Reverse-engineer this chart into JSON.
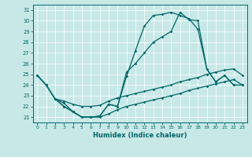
{
  "xlabel": "Humidex (Indice chaleur)",
  "xlim": [
    -0.5,
    23.5
  ],
  "ylim": [
    20.5,
    31.5
  ],
  "yticks": [
    21,
    22,
    23,
    24,
    25,
    26,
    27,
    28,
    29,
    30,
    31
  ],
  "xticks": [
    0,
    1,
    2,
    3,
    4,
    5,
    6,
    7,
    8,
    9,
    10,
    11,
    12,
    13,
    14,
    15,
    16,
    17,
    18,
    19,
    20,
    21,
    22,
    23
  ],
  "bg_color": "#c8e8e8",
  "grid_color": "#ffffff",
  "line_color": "#006666",
  "curve1_x": [
    0,
    1,
    2,
    3,
    4,
    5,
    6,
    7,
    8,
    9,
    10,
    11,
    12,
    13,
    14,
    15,
    16,
    17,
    18,
    19,
    20,
    21,
    22
  ],
  "curve1_y": [
    24.9,
    24.0,
    22.7,
    22.0,
    21.5,
    21.0,
    21.0,
    21.1,
    22.2,
    22.0,
    24.8,
    27.2,
    29.5,
    30.5,
    30.6,
    30.8,
    30.5,
    30.2,
    29.2,
    25.5,
    24.3,
    24.9,
    24.0
  ],
  "curve2_x": [
    0,
    1,
    2,
    3,
    4,
    5,
    6,
    7,
    8,
    9,
    10,
    11,
    12,
    13,
    14,
    15,
    16,
    17,
    18,
    19,
    20,
    21,
    22,
    23
  ],
  "curve2_y": [
    24.9,
    24.0,
    22.7,
    22.0,
    21.5,
    21.0,
    21.0,
    21.1,
    22.2,
    22.0,
    25.2,
    26.0,
    27.0,
    28.0,
    28.5,
    29.0,
    30.8,
    30.1,
    30.0,
    25.5,
    24.3,
    24.9,
    24.0,
    24.0
  ],
  "curve3_x": [
    0,
    1,
    2,
    3,
    4,
    5,
    6,
    7,
    8,
    9,
    10,
    11,
    12,
    13,
    14,
    15,
    16,
    17,
    18,
    19,
    20,
    21,
    22,
    23
  ],
  "curve3_y": [
    24.9,
    24.0,
    22.7,
    22.5,
    22.2,
    22.0,
    22.0,
    22.1,
    22.5,
    22.8,
    23.0,
    23.2,
    23.4,
    23.6,
    23.8,
    24.0,
    24.3,
    24.5,
    24.7,
    25.0,
    25.2,
    25.4,
    25.5,
    24.9
  ],
  "curve4_x": [
    2,
    3,
    4,
    5,
    6,
    7,
    8,
    9,
    10,
    11,
    12,
    13,
    14,
    15,
    16,
    17,
    18,
    19,
    20,
    21,
    22,
    23
  ],
  "curve4_y": [
    22.7,
    22.3,
    21.5,
    21.0,
    21.0,
    21.0,
    21.3,
    21.7,
    22.0,
    22.2,
    22.4,
    22.6,
    22.8,
    23.0,
    23.2,
    23.5,
    23.7,
    23.9,
    24.1,
    24.3,
    24.5,
    24.0
  ]
}
